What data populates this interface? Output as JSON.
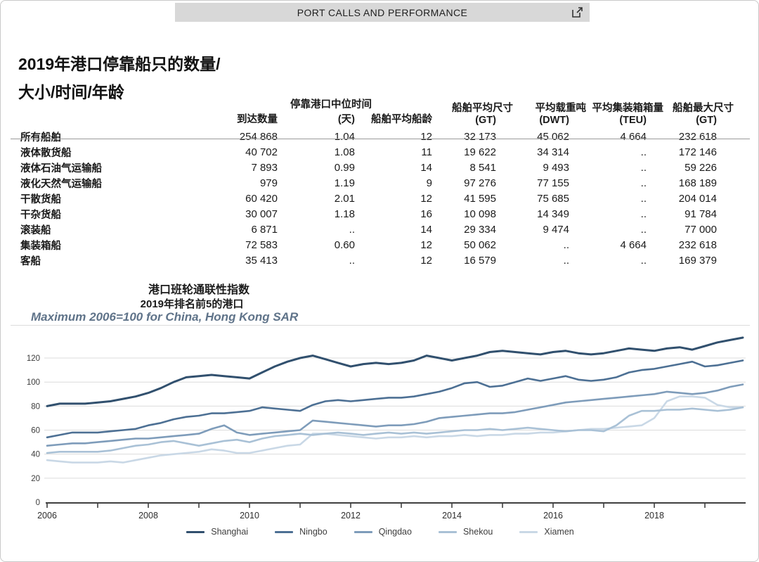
{
  "header": {
    "title": "PORT CALLS AND PERFORMANCE",
    "icon": "external-link-icon"
  },
  "page_title": {
    "line1": "2019年港口停靠船只的数量/",
    "line2": "大小/时间/年龄"
  },
  "table": {
    "columns": [
      {
        "line1": "",
        "line2": "到达数量"
      },
      {
        "line1": "停靠港口中位时间",
        "line2": "(天)"
      },
      {
        "line1": "",
        "line2": "船舶平均船龄"
      },
      {
        "line1": "船舶平均尺寸",
        "line2": "(GT)"
      },
      {
        "line1": "平均载重吨",
        "line2": "(DWT)"
      },
      {
        "line1": "平均集装箱箱量",
        "line2": "(TEU)"
      },
      {
        "line1": "船舶最大尺寸",
        "line2": "(GT)"
      }
    ],
    "rows": [
      {
        "label": "所有船舶",
        "values": [
          "254 868",
          "1.04",
          "12",
          "32 173",
          "45 062",
          "4 664",
          "232 618"
        ]
      },
      {
        "label": "液体散货船",
        "values": [
          "40 702",
          "1.08",
          "11",
          "19 622",
          "34 314",
          "..",
          "172 146"
        ]
      },
      {
        "label": "液体石油气运输船",
        "values": [
          "7 893",
          "0.99",
          "14",
          "8 541",
          "9 493",
          "..",
          "59 226"
        ]
      },
      {
        "label": "液化天然气运输船",
        "values": [
          "979",
          "1.19",
          "9",
          "97 276",
          "77 155",
          "..",
          "168 189"
        ]
      },
      {
        "label": "干散货船",
        "values": [
          "60 420",
          "2.01",
          "12",
          "41 595",
          "75 685",
          "..",
          "204 014"
        ]
      },
      {
        "label": "干杂货船",
        "values": [
          "30 007",
          "1.18",
          "16",
          "10 098",
          "14 349",
          "..",
          "91 784"
        ]
      },
      {
        "label": "滚装船",
        "values": [
          "6 871",
          "..",
          "14",
          "29 334",
          "9 474",
          "..",
          "77 000"
        ]
      },
      {
        "label": "集装箱船",
        "values": [
          "72 583",
          "0.60",
          "12",
          "50 062",
          "..",
          "4 664",
          "232 618"
        ]
      },
      {
        "label": "客船",
        "values": [
          "35 413",
          "..",
          "12",
          "16 579",
          "..",
          "..",
          "169 379"
        ]
      }
    ]
  },
  "chart_section": {
    "title1": "港口班轮通联性指数",
    "title2": "2019年排名前5的港口",
    "subtitle": "Maximum 2006=100 for China, Hong Kong SAR"
  },
  "chart_data": {
    "type": "line",
    "title": "港口班轮通联性指数 2019年排名前5的港口",
    "subtitle": "Maximum 2006=100 for China, Hong Kong SAR",
    "x_start": 2006,
    "x_step": 0.25,
    "x_end": 2019.75,
    "x_tick_labels": [
      2006,
      2008,
      2010,
      2012,
      2014,
      2016,
      2018
    ],
    "y_ticks": [
      0,
      20,
      40,
      60,
      80,
      100,
      120
    ],
    "ylim": [
      0,
      140
    ],
    "grid": true,
    "legend_position": "bottom",
    "colors": {
      "grid": "#dcdcdc",
      "axis": "#3f3f3f",
      "tick_text": "#2e2e2e"
    },
    "series": [
      {
        "name": "Shanghai",
        "color": "#31506e",
        "values": [
          80,
          82,
          82,
          82,
          83,
          84,
          86,
          88,
          91,
          95,
          100,
          104,
          105,
          106,
          105,
          104,
          103,
          108,
          113,
          117,
          120,
          122,
          119,
          116,
          113,
          115,
          116,
          115,
          116,
          118,
          122,
          120,
          118,
          120,
          122,
          125,
          126,
          125,
          124,
          123,
          125,
          126,
          124,
          123,
          124,
          126,
          128,
          127,
          126,
          128,
          129,
          127,
          130,
          133,
          135,
          137
        ]
      },
      {
        "name": "Ningbo",
        "color": "#4d7094",
        "values": [
          54,
          56,
          58,
          58,
          58,
          59,
          60,
          61,
          64,
          66,
          69,
          71,
          72,
          74,
          74,
          75,
          76,
          79,
          78,
          77,
          76,
          81,
          84,
          85,
          84,
          85,
          86,
          87,
          87,
          88,
          90,
          92,
          95,
          99,
          100,
          96,
          97,
          100,
          103,
          101,
          103,
          105,
          102,
          101,
          102,
          104,
          108,
          110,
          111,
          113,
          115,
          117,
          113,
          114,
          116,
          118
        ]
      },
      {
        "name": "Qingdao",
        "color": "#7e9cba",
        "values": [
          47,
          48,
          49,
          49,
          50,
          51,
          52,
          53,
          53,
          54,
          55,
          56,
          57,
          61,
          64,
          58,
          56,
          57,
          58,
          59,
          60,
          68,
          67,
          66,
          65,
          64,
          63,
          64,
          64,
          65,
          67,
          70,
          71,
          72,
          73,
          74,
          74,
          75,
          77,
          79,
          81,
          83,
          84,
          85,
          86,
          87,
          88,
          89,
          90,
          92,
          91,
          90,
          91,
          93,
          96,
          98
        ]
      },
      {
        "name": "Shekou",
        "color": "#a9c1d6",
        "values": [
          41,
          42,
          42,
          42,
          42,
          43,
          45,
          47,
          48,
          50,
          51,
          49,
          47,
          49,
          51,
          52,
          50,
          53,
          55,
          56,
          57,
          56,
          57,
          58,
          57,
          56,
          57,
          58,
          57,
          58,
          57,
          58,
          59,
          60,
          60,
          61,
          60,
          61,
          62,
          61,
          60,
          59,
          60,
          60,
          59,
          64,
          72,
          76,
          76,
          77,
          77,
          78,
          77,
          76,
          77,
          79
        ]
      },
      {
        "name": "Xiamen",
        "color": "#c9d8e6",
        "values": [
          35,
          34,
          33,
          33,
          33,
          34,
          33,
          35,
          37,
          39,
          40,
          41,
          42,
          44,
          43,
          41,
          41,
          43,
          45,
          47,
          48,
          57,
          57,
          56,
          55,
          54,
          53,
          54,
          54,
          55,
          54,
          55,
          55,
          56,
          55,
          56,
          56,
          57,
          57,
          58,
          58,
          59,
          60,
          61,
          61,
          62,
          63,
          64,
          70,
          84,
          88,
          88,
          87,
          81,
          79,
          79
        ]
      }
    ]
  }
}
